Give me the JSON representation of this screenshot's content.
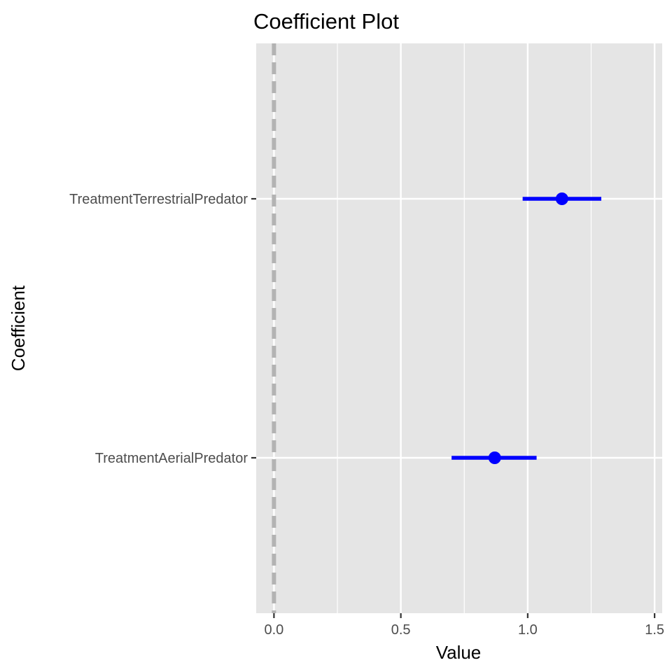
{
  "chart_data": {
    "type": "coefficient-plot",
    "title": "Coefficient Plot",
    "xlabel": "Value",
    "ylabel": "Coefficient",
    "xlim": [
      -0.07,
      1.53
    ],
    "x_ticks": [
      {
        "value": 0.0,
        "label": "0.0"
      },
      {
        "value": 0.5,
        "label": "0.5"
      },
      {
        "value": 1.0,
        "label": "1.0"
      },
      {
        "value": 1.5,
        "label": "1.5"
      }
    ],
    "x_minor_gridlines": [
      0.25,
      0.75,
      1.25
    ],
    "reference_line": {
      "value": 0,
      "style": "dashed",
      "color": "#b3b3b3"
    },
    "grid": true,
    "panel_background": "#e5e5e5",
    "gridline_color": "#ffffff",
    "point_color": "#0000ff",
    "coefficients": [
      {
        "name": "TreatmentTerrestrialPredator",
        "estimate": 1.135,
        "lower": 0.98,
        "upper": 1.29
      },
      {
        "name": "TreatmentAerialPredator",
        "estimate": 0.87,
        "lower": 0.7,
        "upper": 1.035
      }
    ]
  }
}
